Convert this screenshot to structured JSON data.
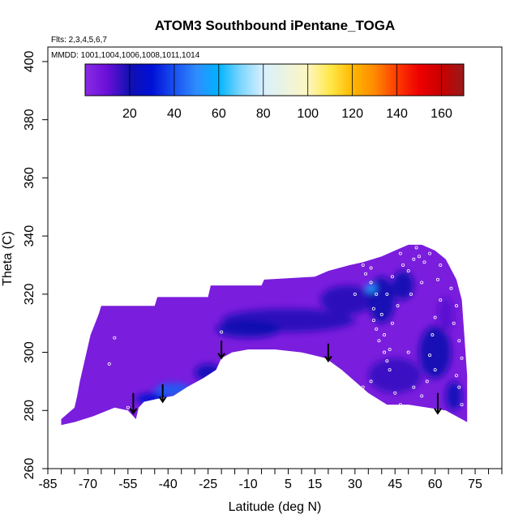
{
  "chart_data": {
    "type": "heatmap",
    "title": "ATOM3 Southbound iPentane_TOGA",
    "flights_note": "Flts: 2,3,4,5,6,7",
    "dates_note": "MMDD: 1001,1004,1006,1008,1011,1014",
    "xlabel": "Latitude (deg N)",
    "ylabel": "Theta (C)",
    "xlim": [
      -85,
      85
    ],
    "ylim": [
      260,
      405
    ],
    "x_tick_labels": [
      -85,
      -70,
      -55,
      -40,
      -25,
      -10,
      5,
      15,
      30,
      45,
      60,
      75
    ],
    "x_minor_ticks": [
      -80,
      -75,
      -65,
      -60,
      -50,
      -45,
      -35,
      -30,
      -20,
      -15,
      -5,
      0,
      10,
      20,
      25,
      35,
      40,
      50,
      55,
      65,
      70,
      80,
      85
    ],
    "y_ticks": [
      260,
      280,
      300,
      320,
      340,
      360,
      380,
      400
    ],
    "colorbar": {
      "min": 0,
      "max": 170,
      "tick_labels": [
        20,
        40,
        60,
        80,
        100,
        120,
        140,
        160
      ],
      "stops": [
        {
          "v": 0,
          "c": "#8a2be2"
        },
        {
          "v": 10,
          "c": "#6a0fd8"
        },
        {
          "v": 20,
          "c": "#1010b0"
        },
        {
          "v": 30,
          "c": "#0010d8"
        },
        {
          "v": 40,
          "c": "#1a50f0"
        },
        {
          "v": 50,
          "c": "#2f8cff"
        },
        {
          "v": 60,
          "c": "#00b4ff"
        },
        {
          "v": 70,
          "c": "#7fd6ff"
        },
        {
          "v": 80,
          "c": "#d8f0ff"
        },
        {
          "v": 100,
          "c": "#fff6c0"
        },
        {
          "v": 110,
          "c": "#ffe84a"
        },
        {
          "v": 120,
          "c": "#ffb800"
        },
        {
          "v": 130,
          "c": "#ff8a00"
        },
        {
          "v": 140,
          "c": "#ff3a00"
        },
        {
          "v": 150,
          "c": "#ee0000"
        },
        {
          "v": 160,
          "c": "#c80000"
        },
        {
          "v": 170,
          "c": "#9a1a1a"
        }
      ]
    },
    "field_outline": [
      [
        -80,
        275
      ],
      [
        -80,
        277
      ],
      [
        -75,
        281
      ],
      [
        -74,
        285
      ],
      [
        -73,
        290
      ],
      [
        -71,
        298
      ],
      [
        -69,
        306
      ],
      [
        -66,
        313
      ],
      [
        -65,
        316
      ],
      [
        -45,
        316
      ],
      [
        -44,
        319
      ],
      [
        -25,
        319
      ],
      [
        -24,
        323
      ],
      [
        -5,
        323
      ],
      [
        -4,
        325
      ],
      [
        15,
        326
      ],
      [
        20,
        328
      ],
      [
        28,
        330
      ],
      [
        33,
        331
      ],
      [
        40,
        333
      ],
      [
        45,
        335
      ],
      [
        50,
        337
      ],
      [
        55,
        337
      ],
      [
        60,
        335
      ],
      [
        64,
        332
      ],
      [
        68,
        325
      ],
      [
        70,
        318
      ],
      [
        71,
        305
      ],
      [
        72,
        292
      ],
      [
        72,
        276
      ],
      [
        64,
        280
      ],
      [
        50,
        282
      ],
      [
        42,
        282
      ],
      [
        35,
        286
      ],
      [
        30,
        290
      ],
      [
        25,
        294
      ],
      [
        19,
        298
      ],
      [
        10,
        300
      ],
      [
        0,
        301
      ],
      [
        -10,
        301
      ],
      [
        -16,
        300
      ],
      [
        -20,
        298
      ],
      [
        -22,
        294
      ],
      [
        -27,
        291
      ],
      [
        -33,
        288
      ],
      [
        -38,
        285
      ],
      [
        -44,
        284
      ],
      [
        -49,
        283
      ],
      [
        -51,
        281
      ],
      [
        -52,
        277
      ],
      [
        -55,
        280
      ],
      [
        -60,
        281
      ],
      [
        -68,
        278
      ],
      [
        -75,
        276
      ]
    ],
    "blobs": [
      {
        "x": -46,
        "y": 284,
        "rx": 6,
        "ry": 2,
        "v": 28
      },
      {
        "x": -38,
        "y": 287,
        "rx": 7,
        "ry": 2.5,
        "v": 42
      },
      {
        "x": -25,
        "y": 293,
        "rx": 5,
        "ry": 3,
        "v": 22
      },
      {
        "x": 5,
        "y": 311,
        "rx": 25,
        "ry": 4,
        "v": 18
      },
      {
        "x": -10,
        "y": 308,
        "rx": 12,
        "ry": 3,
        "v": 20
      },
      {
        "x": 27,
        "y": 318,
        "rx": 10,
        "ry": 5,
        "v": 18
      },
      {
        "x": 40,
        "y": 318,
        "rx": 5,
        "ry": 8,
        "v": 20
      },
      {
        "x": 36,
        "y": 322,
        "rx": 2,
        "ry": 1.5,
        "v": 55
      },
      {
        "x": 48,
        "y": 323,
        "rx": 4,
        "ry": 5,
        "v": 20
      },
      {
        "x": 45,
        "y": 292,
        "rx": 10,
        "ry": 6,
        "v": 16
      },
      {
        "x": 60,
        "y": 300,
        "rx": 6,
        "ry": 9,
        "v": 20
      },
      {
        "x": 67,
        "y": 285,
        "rx": 3,
        "ry": 5,
        "v": 22
      },
      {
        "x": 64,
        "y": 313,
        "rx": 3,
        "ry": 6,
        "v": 12
      }
    ],
    "arrows": [
      {
        "x": -53,
        "y_top": 286,
        "y_bottom": 279
      },
      {
        "x": -42,
        "y_top": 289,
        "y_bottom": 283
      },
      {
        "x": -20,
        "y_top": 304,
        "y_bottom": 298
      },
      {
        "x": 20,
        "y_top": 303,
        "y_bottom": 297
      },
      {
        "x": 61,
        "y_top": 286,
        "y_bottom": 279
      }
    ],
    "sample_points": [
      [
        -55,
        281
      ],
      [
        -62,
        296
      ],
      [
        -60,
        305
      ],
      [
        -20,
        307
      ],
      [
        -20,
        296
      ],
      [
        33,
        330
      ],
      [
        34,
        327
      ],
      [
        36,
        329
      ],
      [
        36,
        324
      ],
      [
        38,
        320
      ],
      [
        37,
        315
      ],
      [
        37,
        311
      ],
      [
        38,
        308
      ],
      [
        39,
        304
      ],
      [
        41,
        300
      ],
      [
        42,
        297
      ],
      [
        43,
        301
      ],
      [
        41,
        306
      ],
      [
        40,
        313
      ],
      [
        42,
        320
      ],
      [
        44,
        326
      ],
      [
        48,
        330
      ],
      [
        50,
        328
      ],
      [
        52,
        332
      ],
      [
        53,
        336
      ],
      [
        54,
        333
      ],
      [
        56,
        331
      ],
      [
        58,
        334
      ],
      [
        62,
        330
      ],
      [
        61,
        325
      ],
      [
        62,
        318
      ],
      [
        60,
        312
      ],
      [
        59,
        306
      ],
      [
        58,
        299
      ],
      [
        60,
        294
      ],
      [
        57,
        290
      ],
      [
        55,
        285
      ],
      [
        52,
        288
      ],
      [
        47,
        282
      ],
      [
        45,
        286
      ],
      [
        36,
        290
      ],
      [
        33,
        288
      ],
      [
        50,
        300
      ],
      [
        44,
        310
      ],
      [
        46,
        316
      ],
      [
        51,
        320
      ],
      [
        66,
        322
      ],
      [
        68,
        316
      ],
      [
        67,
        310
      ],
      [
        69,
        304
      ],
      [
        70,
        298
      ],
      [
        68,
        292
      ],
      [
        69,
        288
      ],
      [
        70,
        282
      ],
      [
        64,
        278
      ],
      [
        47,
        334
      ],
      [
        55,
        324
      ],
      [
        30,
        320
      ],
      [
        43,
        294
      ]
    ]
  }
}
